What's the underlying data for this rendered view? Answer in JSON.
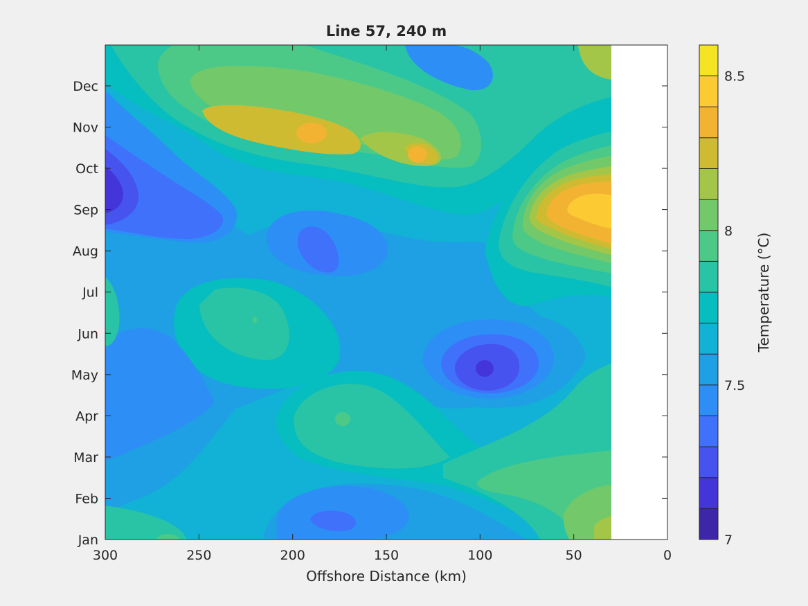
{
  "chart_data": {
    "type": "heatmap",
    "subtype": "filled-contour",
    "title": "Line 57, 240 m",
    "xlabel": "Offshore Distance (km)",
    "ylabel": "",
    "xlim": [
      300,
      0
    ],
    "x_reversed": true,
    "x_ticks": [
      300,
      250,
      200,
      150,
      100,
      50,
      0
    ],
    "x_tick_labels": [
      "300",
      "250",
      "200",
      "150",
      "100",
      "50",
      "0"
    ],
    "y_tick_labels": [
      "Jan",
      "Feb",
      "Mar",
      "Apr",
      "May",
      "Jun",
      "Jul",
      "Aug",
      "Sep",
      "Oct",
      "Nov",
      "Dec"
    ],
    "data_x_extent_km": [
      300,
      30
    ],
    "no_data_region_km": [
      30,
      0
    ],
    "grid": false,
    "colorbar": {
      "label": "Temperature (°C)",
      "position": "right",
      "clim": [
        7,
        8.6
      ],
      "levels": [
        7,
        7.1,
        7.2,
        7.3,
        7.4,
        7.5,
        7.6,
        7.7,
        7.8,
        7.9,
        8,
        8.1,
        8.2,
        8.3,
        8.4,
        8.5,
        8.6
      ],
      "ticks": [
        7,
        7.5,
        8,
        8.5
      ],
      "tick_labels": [
        "7",
        "7.5",
        "8",
        "8.5"
      ],
      "colors": [
        "#3e26a8",
        "#4435d8",
        "#4653ef",
        "#3f71fb",
        "#2d8ef5",
        "#1f9fe4",
        "#12b1d6",
        "#06bdc0",
        "#29c3a5",
        "#4cc987",
        "#73c96a",
        "#a3c548",
        "#cebb31",
        "#f2b333",
        "#fccb33",
        "#f5e423"
      ]
    },
    "features": [
      {
        "type": "warm",
        "x_km": 35,
        "month": 9.1,
        "value": 8.5
      },
      {
        "type": "warm",
        "x_km": 180,
        "month": 11.2,
        "value": 8.35
      },
      {
        "type": "warm",
        "x_km": 135,
        "month": 10.7,
        "value": 8.3
      },
      {
        "type": "warm",
        "x_km": 30,
        "month": 1.0,
        "value": 8.3
      },
      {
        "type": "warm",
        "x_km": 80,
        "month": 2.0,
        "value": 8.05
      },
      {
        "type": "cold",
        "x_km": 98,
        "month": 5.0,
        "value": 7.1
      },
      {
        "type": "cold",
        "x_km": 298,
        "month": 9.5,
        "value": 7.3
      },
      {
        "type": "cold",
        "x_km": 190,
        "month": 8.0,
        "value": 7.4
      },
      {
        "type": "cold",
        "x_km": 160,
        "month": 1.5,
        "value": 7.4
      },
      {
        "type": "cold",
        "x_km": 120,
        "month": 12.4,
        "value": 7.4
      }
    ]
  }
}
